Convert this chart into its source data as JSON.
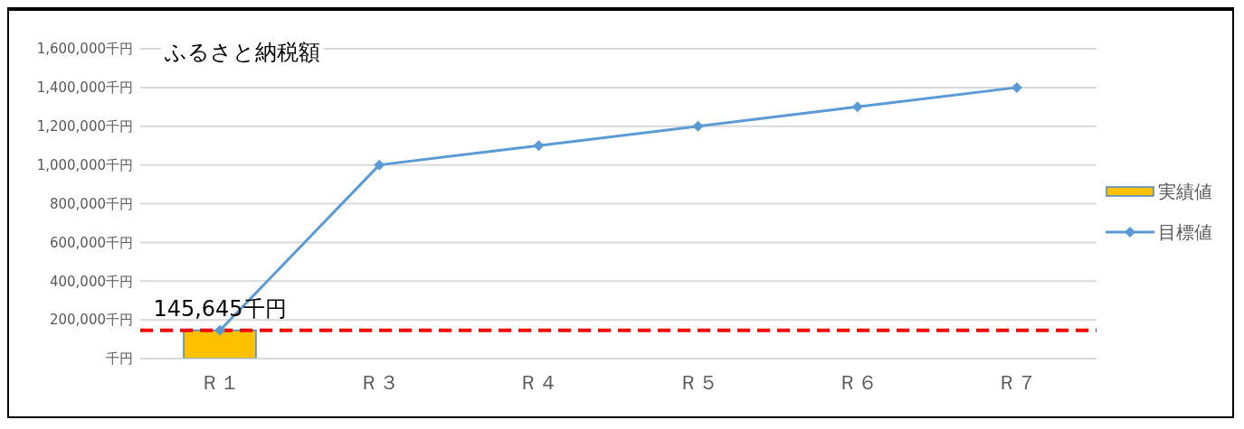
{
  "chart_data": {
    "type": "bar",
    "title": "ふるさと納税額",
    "categories": [
      "Ｒ１",
      "Ｒ３",
      "Ｒ４",
      "Ｒ５",
      "Ｒ６",
      "Ｒ７"
    ],
    "series": [
      {
        "name": "実績値",
        "color": "#ffc000",
        "values": [
          145645,
          null,
          null,
          null,
          null,
          null
        ],
        "value_labels": [
          "145,645千円",
          null,
          null,
          null,
          null,
          null
        ]
      },
      {
        "name": "目標値",
        "type": "line",
        "color": "#5b9bd5",
        "values": [
          145645,
          1000000,
          1100000,
          1200000,
          1300000,
          1400000
        ]
      }
    ],
    "ylim": [
      0,
      1600000
    ],
    "yticks": [
      {
        "value": 0,
        "label": "千円"
      },
      {
        "value": 200000,
        "label": "200,000千円"
      },
      {
        "value": 400000,
        "label": "400,000千円"
      },
      {
        "value": 600000,
        "label": "600,000千円"
      },
      {
        "value": 800000,
        "label": "800,000千円"
      },
      {
        "value": 1000000,
        "label": "1,000,000千円"
      },
      {
        "value": 1200000,
        "label": "1,200,000千円"
      },
      {
        "value": 1400000,
        "label": "1,400,000千円"
      },
      {
        "value": 1600000,
        "label": "1,600,000千円"
      }
    ],
    "ref_lines": [
      {
        "axis": "y",
        "value": 145645,
        "color": "#ff0000",
        "line_style": "dashed"
      }
    ],
    "grid": "y",
    "legend": "right",
    "marker": "diamond",
    "line_style": "solid"
  }
}
